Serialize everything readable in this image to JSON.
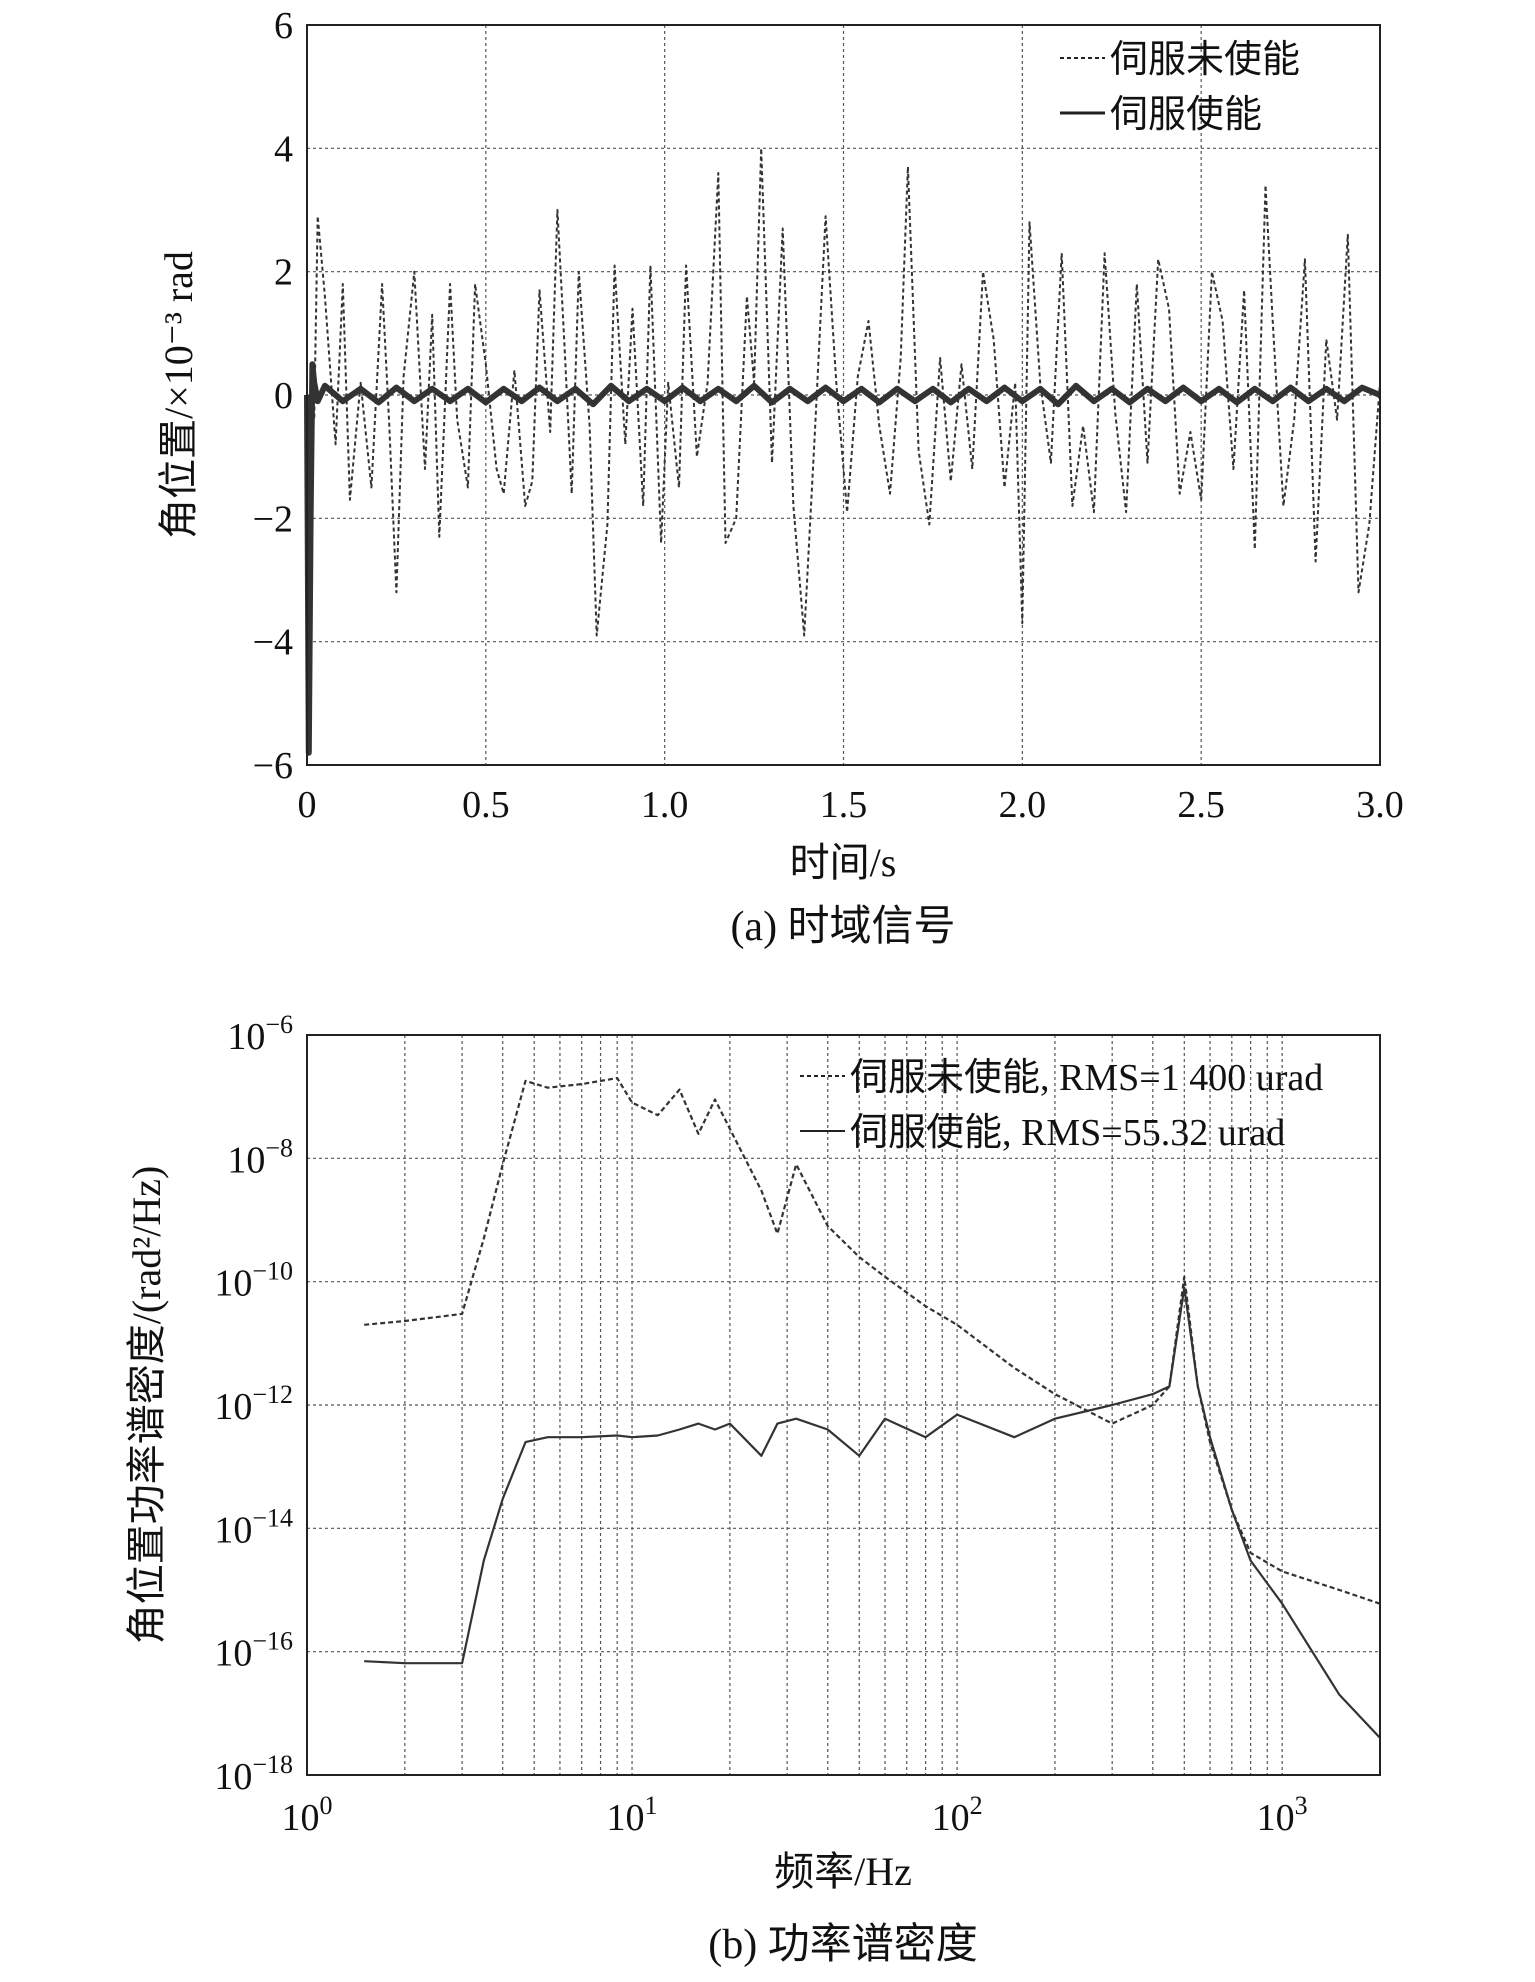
{
  "chart_data": [
    {
      "type": "line",
      "xlabel": "时间/s",
      "ylabel": "角位置/×10⁻³ rad",
      "caption": "(a) 时域信号",
      "xlim": [
        0,
        3.0
      ],
      "ylim": [
        -6,
        6
      ],
      "xticks": [
        0,
        0.5,
        1.0,
        1.5,
        2.0,
        2.5,
        3.0
      ],
      "xtick_labels": [
        "0",
        "0.5",
        "1.0",
        "1.5",
        "2.0",
        "2.5",
        "3.0"
      ],
      "yticks": [
        6,
        4,
        2,
        0,
        -2,
        -4,
        -6
      ],
      "ytick_labels": [
        "6",
        "4",
        "2",
        "0",
        "−2",
        "−4",
        "−6"
      ],
      "grid": true,
      "legend_position": "top-right",
      "series": [
        {
          "name": "伺服未使能",
          "style": "dashed",
          "x": [
            0.0,
            0.02,
            0.03,
            0.05,
            0.08,
            0.1,
            0.12,
            0.15,
            0.18,
            0.21,
            0.23,
            0.25,
            0.27,
            0.3,
            0.33,
            0.35,
            0.37,
            0.4,
            0.42,
            0.45,
            0.47,
            0.5,
            0.53,
            0.55,
            0.58,
            0.61,
            0.63,
            0.65,
            0.68,
            0.7,
            0.72,
            0.74,
            0.76,
            0.79,
            0.81,
            0.84,
            0.86,
            0.89,
            0.91,
            0.94,
            0.96,
            0.99,
            1.01,
            1.04,
            1.06,
            1.09,
            1.12,
            1.15,
            1.17,
            1.2,
            1.23,
            1.25,
            1.27,
            1.3,
            1.33,
            1.36,
            1.39,
            1.42,
            1.45,
            1.48,
            1.51,
            1.54,
            1.57,
            1.6,
            1.63,
            1.66,
            1.68,
            1.71,
            1.74,
            1.77,
            1.8,
            1.83,
            1.86,
            1.89,
            1.92,
            1.95,
            1.98,
            2.0,
            2.02,
            2.05,
            2.08,
            2.11,
            2.14,
            2.17,
            2.2,
            2.23,
            2.26,
            2.29,
            2.32,
            2.35,
            2.38,
            2.41,
            2.44,
            2.47,
            2.5,
            2.53,
            2.56,
            2.59,
            2.62,
            2.65,
            2.68,
            2.7,
            2.73,
            2.76,
            2.79,
            2.82,
            2.85,
            2.88,
            2.91,
            2.94,
            2.97,
            3.0
          ],
          "y": [
            0,
            -0.4,
            2.9,
            1.6,
            -0.8,
            1.8,
            -1.7,
            0.2,
            -1.5,
            1.8,
            -0.5,
            -3.2,
            0.3,
            2.0,
            -1.2,
            1.3,
            -2.3,
            1.8,
            -0.4,
            -1.5,
            1.8,
            0.5,
            -1.2,
            -1.6,
            0.4,
            -1.8,
            -1.4,
            1.7,
            -0.6,
            3.0,
            0.8,
            -1.6,
            2.0,
            -0.5,
            -3.9,
            -2.1,
            2.1,
            -0.8,
            1.4,
            -1.8,
            2.1,
            -2.4,
            0.2,
            -1.5,
            2.1,
            -1.0,
            0.2,
            3.6,
            -2.4,
            -2.0,
            1.6,
            0.2,
            4.0,
            -1.1,
            2.7,
            -1.8,
            -3.9,
            -0.6,
            2.9,
            0.2,
            -1.9,
            0.3,
            1.2,
            -0.5,
            -1.6,
            0.6,
            3.7,
            -0.9,
            -2.1,
            0.6,
            -1.4,
            0.5,
            -1.2,
            2.0,
            0.9,
            -1.5,
            0.2,
            -3.7,
            2.8,
            0.2,
            -1.1,
            2.3,
            -1.8,
            -0.5,
            -1.9,
            2.3,
            -0.3,
            -1.9,
            1.8,
            -1.1,
            2.2,
            1.4,
            -1.6,
            -0.6,
            -1.7,
            2.0,
            1.2,
            -1.2,
            1.7,
            -2.5,
            3.4,
            1.2,
            -1.8,
            -0.4,
            2.2,
            -2.7,
            0.9,
            -0.4,
            2.6,
            -3.2,
            -2.1,
            0.2
          ]
        },
        {
          "name": "伺服使能",
          "style": "solid",
          "x": [
            0.0,
            0.005,
            0.01,
            0.015,
            0.02,
            0.03,
            0.05,
            0.1,
            0.15,
            0.2,
            0.25,
            0.3,
            0.35,
            0.4,
            0.45,
            0.5,
            0.55,
            0.6,
            0.65,
            0.7,
            0.75,
            0.8,
            0.85,
            0.9,
            0.95,
            1.0,
            1.05,
            1.1,
            1.15,
            1.2,
            1.25,
            1.3,
            1.35,
            1.4,
            1.45,
            1.5,
            1.55,
            1.6,
            1.65,
            1.7,
            1.75,
            1.8,
            1.85,
            1.9,
            1.95,
            2.0,
            2.05,
            2.1,
            2.15,
            2.2,
            2.25,
            2.3,
            2.35,
            2.4,
            2.45,
            2.5,
            2.55,
            2.6,
            2.65,
            2.7,
            2.75,
            2.8,
            2.85,
            2.9,
            2.95,
            3.0
          ],
          "y": [
            0,
            -5.8,
            -2.0,
            0.5,
            0.2,
            -0.1,
            0.15,
            -0.1,
            0.1,
            -0.12,
            0.12,
            -0.1,
            0.1,
            -0.1,
            0.1,
            -0.12,
            0.1,
            -0.1,
            0.12,
            -0.1,
            0.1,
            -0.15,
            0.15,
            -0.1,
            0.1,
            -0.1,
            0.12,
            -0.1,
            0.1,
            -0.1,
            0.15,
            -0.12,
            0.1,
            -0.1,
            0.12,
            -0.1,
            0.1,
            -0.12,
            0.1,
            -0.1,
            0.1,
            -0.12,
            0.1,
            -0.1,
            0.12,
            -0.1,
            0.1,
            -0.15,
            0.15,
            -0.1,
            0.1,
            -0.12,
            0.1,
            -0.1,
            0.12,
            -0.1,
            0.1,
            -0.12,
            0.1,
            -0.1,
            0.12,
            -0.1,
            0.1,
            -0.1,
            0.12,
            0
          ]
        }
      ]
    },
    {
      "type": "line",
      "xlabel": "频率/Hz",
      "ylabel": "角位置功率谱密度/(rad²/Hz)",
      "caption": "(b) 功率谱密度",
      "xscale": "log",
      "yscale": "log",
      "xlim": [
        1,
        2000
      ],
      "ylim": [
        1e-18,
        1e-06
      ],
      "xticks": [
        1,
        10,
        100,
        1000
      ],
      "xtick_base": "10",
      "xtick_exponents": [
        "0",
        "1",
        "2",
        "3"
      ],
      "yticks": [
        1e-06,
        1e-08,
        1e-10,
        1e-12,
        1e-14,
        1e-16,
        1e-18
      ],
      "ytick_base": "10",
      "ytick_exponents": [
        "−6",
        "−8",
        "−10",
        "−12",
        "−14",
        "−16",
        "−18"
      ],
      "grid": true,
      "legend_position": "top-right",
      "series": [
        {
          "name": "伺服未使能, RMS=1 400 urad",
          "style": "dashed",
          "x": [
            1.5,
            2,
            3,
            3.5,
            4,
            4.7,
            5.5,
            7,
            9,
            10,
            12,
            14,
            16,
            18,
            20,
            25,
            28,
            32,
            40,
            50,
            60,
            80,
            100,
            150,
            200,
            300,
            400,
            450,
            500,
            550,
            600,
            700,
            800,
            1000,
            1500,
            2000
          ],
          "y": [
            2e-11,
            2.3e-11,
            3e-11,
            5e-10,
            8e-09,
            1.8e-07,
            1.4e-07,
            1.6e-07,
            2e-07,
            8e-08,
            5e-08,
            1.3e-07,
            2.5e-08,
            9e-08,
            3e-08,
            3e-09,
            6e-10,
            8e-09,
            8e-10,
            2.5e-10,
            1.2e-10,
            4e-11,
            2e-11,
            4e-12,
            1.5e-12,
            5e-13,
            1e-12,
            2e-12,
            1.2e-10,
            2e-12,
            2.5e-13,
            2e-14,
            4e-15,
            2e-15,
            1e-15,
            6e-16
          ]
        },
        {
          "name": "伺服使能, RMS=55.32 urad",
          "style": "solid",
          "x": [
            1.5,
            2,
            3,
            3.5,
            4,
            4.7,
            5.5,
            6,
            7,
            9,
            10,
            12,
            14,
            16,
            18,
            20,
            25,
            28,
            32,
            40,
            50,
            60,
            80,
            100,
            150,
            200,
            300,
            400,
            450,
            500,
            550,
            600,
            700,
            800,
            1000,
            1500,
            2000
          ],
          "y": [
            7e-17,
            6.5e-17,
            6.5e-17,
            3e-15,
            3e-14,
            2.5e-13,
            3e-13,
            3e-13,
            3e-13,
            3.2e-13,
            3e-13,
            3.2e-13,
            4e-13,
            5e-13,
            4e-13,
            5e-13,
            1.5e-13,
            5e-13,
            6e-13,
            4e-13,
            1.5e-13,
            6e-13,
            3e-13,
            7e-13,
            3e-13,
            6e-13,
            1e-12,
            1.5e-12,
            2e-12,
            8e-11,
            2e-12,
            3e-13,
            2e-14,
            3e-15,
            6e-16,
            2e-17,
            4e-18
          ]
        }
      ]
    }
  ]
}
